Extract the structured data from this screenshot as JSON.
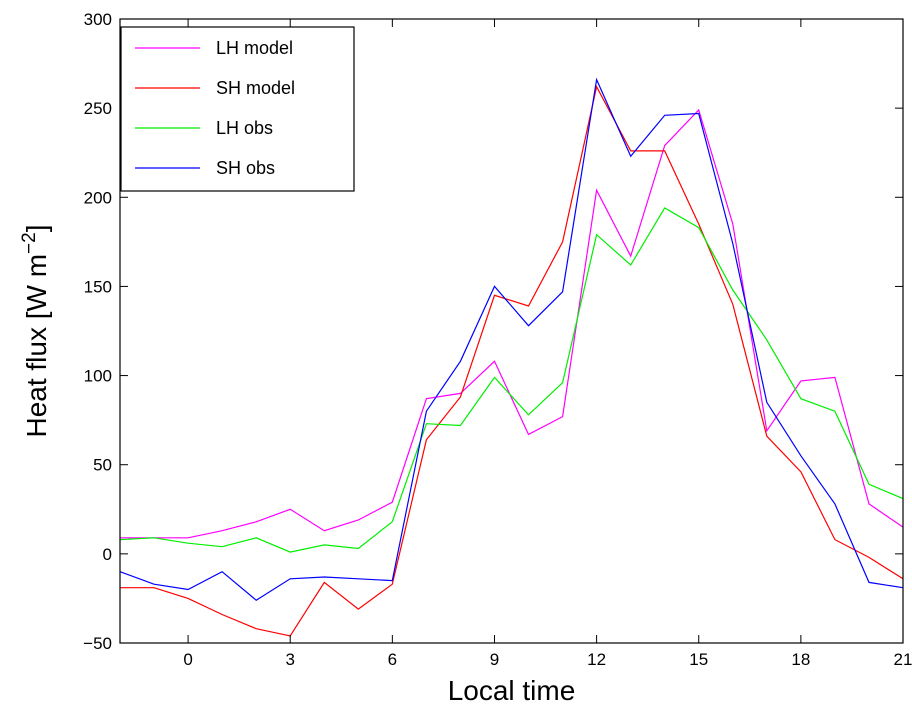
{
  "chart_data": {
    "type": "line",
    "title": "",
    "xlabel": "Local time",
    "ylabel_base": "Heat flux [W m",
    "ylabel_sup": "−2",
    "ylabel_end": "]",
    "xlim": [
      -2,
      21
    ],
    "ylim": [
      -50,
      300
    ],
    "xticks": [
      0,
      3,
      6,
      9,
      12,
      15,
      18,
      21
    ],
    "xtick_labels": [
      "0",
      "3",
      "6",
      "9",
      "12",
      "15",
      "18",
      "21"
    ],
    "yticks": [
      -50,
      0,
      50,
      100,
      150,
      200,
      250,
      300
    ],
    "ytick_labels": [
      "−50",
      "0",
      "50",
      "100",
      "150",
      "200",
      "250",
      "300"
    ],
    "grid": false,
    "legend_position": "top-left",
    "x": [
      -2,
      -1,
      0,
      1,
      2,
      3,
      4,
      5,
      6,
      7,
      8,
      9,
      10,
      11,
      12,
      13,
      14,
      15,
      16,
      17,
      18,
      19,
      20,
      21
    ],
    "series": [
      {
        "name": "LH model",
        "color": "#ff00ff",
        "values": [
          9,
          9,
          9,
          13,
          18,
          25,
          13,
          19,
          29,
          87,
          90,
          108,
          67,
          77,
          204,
          167,
          229,
          249,
          185,
          69,
          97,
          99,
          28,
          15
        ]
      },
      {
        "name": "SH model",
        "color": "#ff0000",
        "values": [
          -19,
          -19,
          -25,
          -34,
          -42,
          -46,
          -16,
          -31,
          -17,
          64,
          88,
          145,
          139,
          175,
          262,
          226,
          226,
          185,
          140,
          66,
          46,
          8,
          -2,
          -14
        ]
      },
      {
        "name": "LH obs",
        "color": "#00ee00",
        "values": [
          8,
          9,
          6,
          4,
          9,
          1,
          5,
          3,
          18,
          73,
          72,
          99,
          78,
          96,
          179,
          162,
          194,
          183,
          148,
          120,
          87,
          80,
          39,
          31
        ]
      },
      {
        "name": "SH obs",
        "color": "#0000ff",
        "values": [
          -10,
          -17,
          -20,
          -10,
          -26,
          -14,
          -13,
          -14,
          -15,
          80,
          108,
          150,
          128,
          147,
          266,
          223,
          246,
          247,
          174,
          85,
          55,
          28,
          -16,
          -19
        ]
      }
    ]
  }
}
